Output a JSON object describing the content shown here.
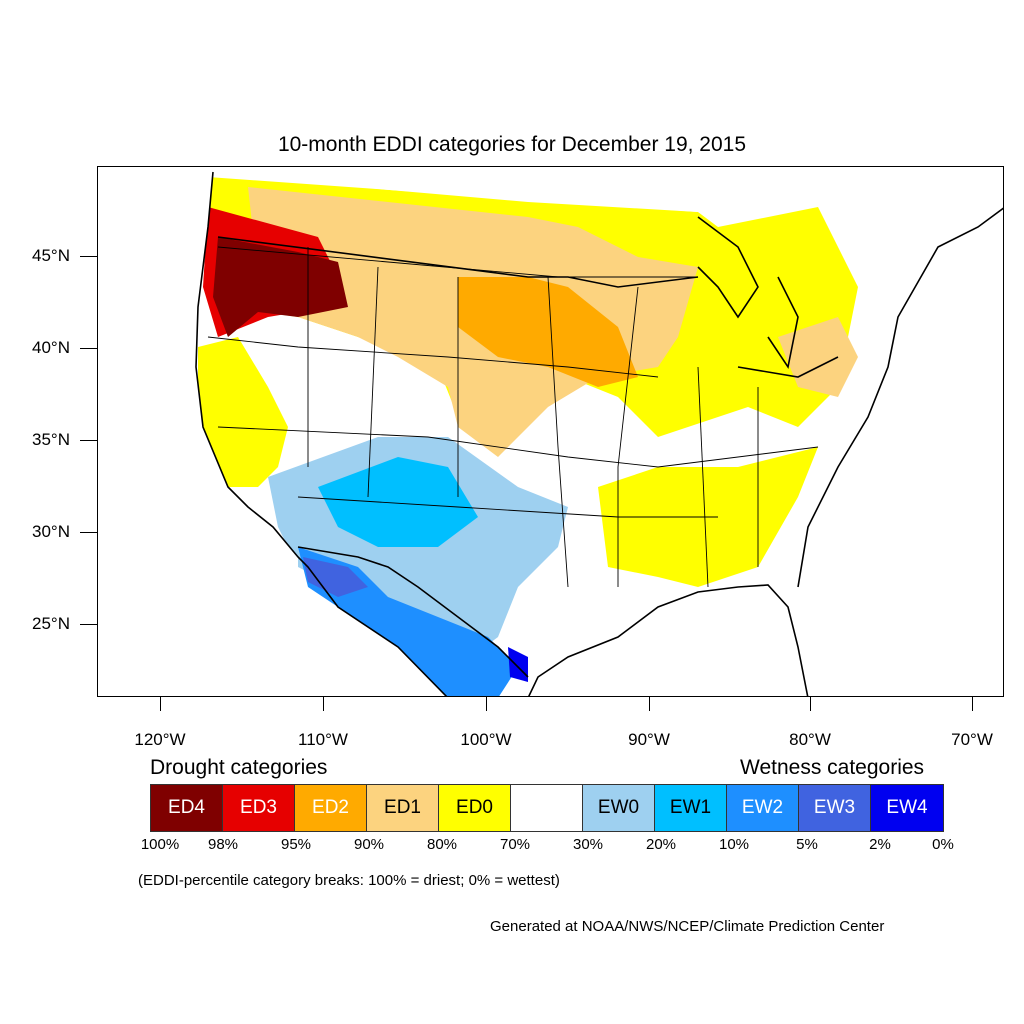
{
  "title": "10-month EDDI categories for December 19, 2015",
  "axes": {
    "lat_labels": [
      "45°N",
      "40°N",
      "35°N",
      "30°N",
      "25°N"
    ],
    "lon_labels": [
      "120°W",
      "110°W",
      "100°W",
      "90°W",
      "80°W",
      "70°W"
    ]
  },
  "legend": {
    "drought_heading": "Drought categories",
    "wetness_heading": "Wetness categories",
    "categories": [
      {
        "label": "ED4",
        "color": "#7f0000",
        "text_color": "#ffffff"
      },
      {
        "label": "ED3",
        "color": "#e60000",
        "text_color": "#ffffff"
      },
      {
        "label": "ED2",
        "color": "#ffaa00",
        "text_color": "#ffffff"
      },
      {
        "label": "ED1",
        "color": "#fcd37f",
        "text_color": "#000000"
      },
      {
        "label": "ED0",
        "color": "#ffff00",
        "text_color": "#000000"
      },
      {
        "label": "",
        "color": "#ffffff",
        "text_color": "#000000"
      },
      {
        "label": "EW0",
        "color": "#9ed0f0",
        "text_color": "#000000"
      },
      {
        "label": "EW1",
        "color": "#00bfff",
        "text_color": "#000000"
      },
      {
        "label": "EW2",
        "color": "#1e8fff",
        "text_color": "#ffffff"
      },
      {
        "label": "EW3",
        "color": "#4063e0",
        "text_color": "#ffffff"
      },
      {
        "label": "EW4",
        "color": "#0000f0",
        "text_color": "#ffffff"
      }
    ],
    "breaks": [
      "100%",
      "98%",
      "95%",
      "90%",
      "80%",
      "70%",
      "30%",
      "20%",
      "10%",
      "5%",
      "2%",
      "0%"
    ]
  },
  "note": "(EDDI-percentile category breaks: 100% = driest; 0% = wettest)",
  "credit": "Generated at NOAA/NWS/NCEP/Climate Prediction Center"
}
